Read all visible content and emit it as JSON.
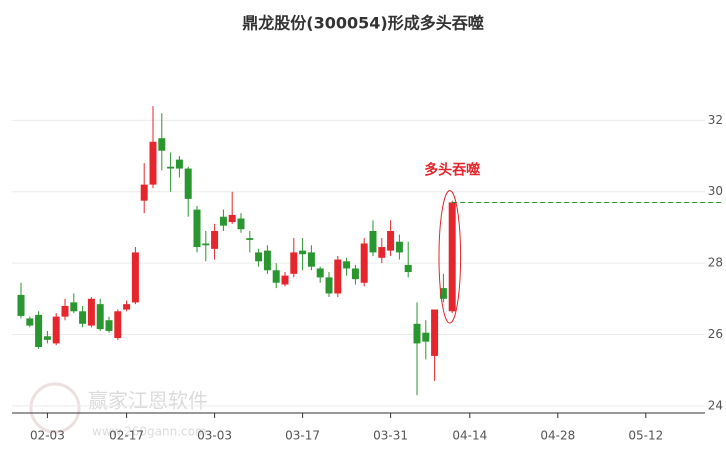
{
  "chart_data": {
    "type": "candlestick",
    "title": "鼎龙股份(300054)形成多头吞噬",
    "annotation": "多头吞噬",
    "watermark": {
      "name": "赢家江恩软件",
      "url": "www.260gann.com"
    },
    "categories": [
      null,
      null,
      null,
      "02-03",
      null,
      null,
      null,
      null,
      null,
      null,
      null,
      null,
      "02-17",
      null,
      null,
      null,
      null,
      null,
      null,
      null,
      null,
      null,
      "03-03",
      null,
      null,
      null,
      null,
      null,
      null,
      null,
      null,
      null,
      "03-17",
      null,
      null,
      null,
      null,
      null,
      null,
      null,
      null,
      null,
      "03-31",
      null,
      null,
      null,
      null,
      null,
      null,
      null,
      null,
      "04-14",
      null,
      null,
      null,
      null,
      null,
      null,
      null,
      null,
      null,
      "04-28",
      null,
      null,
      null,
      null,
      null,
      null,
      null,
      null,
      null,
      "05-12",
      null,
      null,
      null,
      null,
      null,
      null
    ],
    "open": [
      27.11,
      26.45,
      26.55,
      25.95,
      25.75,
      26.5,
      26.9,
      26.65,
      26.25,
      26.85,
      26.4,
      25.9,
      26.7,
      26.9,
      29.75,
      30.2,
      31.5,
      30.7,
      30.9,
      30.65,
      29.5,
      28.55,
      28.4,
      29.3,
      29.15,
      29.25,
      28.7,
      28.3,
      28.35,
      27.8,
      27.4,
      27.7,
      28.35,
      28.3,
      27.85,
      27.6,
      27.15,
      28.05,
      27.85,
      27.45,
      28.9,
      28.15,
      28.35,
      28.6,
      27.95,
      26.3,
      26.05,
      25.4,
      27.3,
      26.65,
      null,
      null,
      null,
      null,
      null,
      null,
      null,
      null,
      null,
      null,
      null,
      null,
      null,
      null,
      null,
      null,
      null,
      null,
      null,
      null,
      null,
      null,
      null,
      null,
      null,
      null,
      null,
      null
    ],
    "close": [
      26.52,
      26.25,
      25.65,
      25.85,
      26.5,
      26.8,
      26.65,
      26.3,
      27.0,
      26.15,
      26.1,
      26.65,
      26.85,
      28.3,
      30.2,
      31.4,
      31.15,
      30.65,
      30.65,
      29.8,
      28.45,
      28.5,
      28.9,
      29.05,
      29.35,
      28.95,
      28.65,
      28.05,
      27.8,
      27.45,
      27.65,
      28.3,
      28.25,
      27.9,
      27.6,
      27.15,
      28.1,
      27.85,
      27.55,
      28.55,
      28.3,
      28.45,
      28.9,
      28.3,
      27.75,
      25.75,
      25.8,
      26.7,
      27.0,
      29.7,
      null,
      null,
      null,
      null,
      null,
      null,
      null,
      null,
      null,
      null,
      null,
      null,
      null,
      null,
      null,
      null,
      null,
      null,
      null,
      null,
      null,
      null,
      null,
      null,
      null,
      null,
      null,
      null
    ],
    "high": [
      27.45,
      26.5,
      26.65,
      26.1,
      26.6,
      27.0,
      27.15,
      26.8,
      27.05,
      27.0,
      26.5,
      26.7,
      26.95,
      28.45,
      30.8,
      32.4,
      32.2,
      31.1,
      31.0,
      30.7,
      29.6,
      28.9,
      29.1,
      29.5,
      30.0,
      29.4,
      28.9,
      28.4,
      28.5,
      28.0,
      27.75,
      28.7,
      28.7,
      28.5,
      27.9,
      27.75,
      28.2,
      28.15,
      27.95,
      28.7,
      29.2,
      28.7,
      29.2,
      28.8,
      28.6,
      26.9,
      26.4,
      26.7,
      27.7,
      29.75,
      null,
      null,
      null,
      null,
      null,
      null,
      null,
      null,
      null,
      null,
      null,
      null,
      null,
      null,
      null,
      null,
      null,
      null,
      null,
      null,
      null,
      null,
      null,
      null,
      null,
      null,
      null,
      null
    ],
    "low": [
      26.45,
      26.2,
      25.6,
      25.75,
      25.7,
      26.4,
      26.6,
      26.2,
      26.2,
      26.1,
      26.05,
      25.85,
      26.65,
      26.85,
      29.4,
      30.1,
      30.6,
      30.0,
      30.4,
      29.3,
      28.3,
      28.05,
      28.1,
      28.9,
      29.1,
      28.85,
      28.3,
      27.9,
      27.7,
      27.3,
      27.35,
      27.6,
      27.8,
      27.8,
      27.45,
      27.05,
      27.05,
      27.65,
      27.4,
      27.35,
      28.2,
      28.0,
      28.2,
      28.1,
      27.6,
      24.3,
      25.3,
      24.7,
      26.9,
      26.6,
      null,
      null,
      null,
      null,
      null,
      null,
      null,
      null,
      null,
      null,
      null,
      null,
      null,
      null,
      null,
      null,
      null,
      null,
      null,
      null,
      null,
      null,
      null,
      null,
      null,
      null,
      null,
      null
    ],
    "up_color": "#e5262c",
    "down_color": "#2a9630",
    "annotation_color": "#e5262c",
    "ylim": [
      23.8,
      34
    ],
    "yticks": [
      24,
      26,
      28,
      30,
      32
    ],
    "grid": true
  }
}
